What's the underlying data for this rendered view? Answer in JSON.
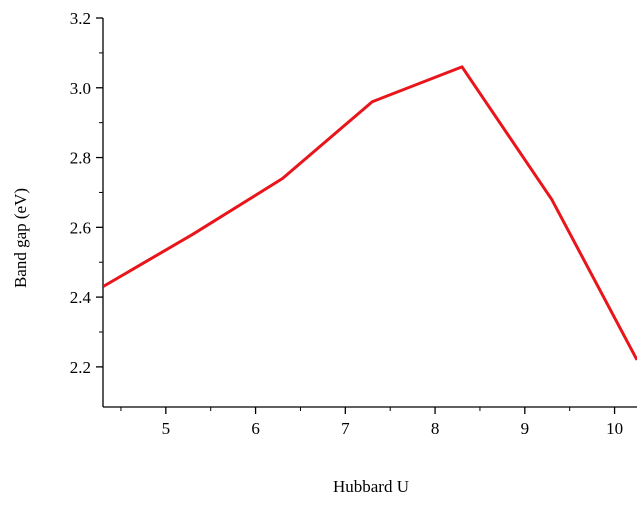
{
  "chart_data": {
    "type": "line",
    "title": "",
    "xlabel": "Hubbard U",
    "ylabel": "Band gap (eV)",
    "xlim": [
      4.3,
      10.25
    ],
    "ylim": [
      2.085,
      3.2
    ],
    "xticks": [
      5,
      6,
      7,
      8,
      9,
      10
    ],
    "yticks": [
      2.2,
      2.4,
      2.6,
      2.8,
      3.0,
      3.2
    ],
    "xtick_labels": [
      "5",
      "6",
      "7",
      "8",
      "9",
      "10"
    ],
    "ytick_labels": [
      "2.2",
      "2.4",
      "2.6",
      "2.8",
      "3.0",
      "3.2"
    ],
    "grid": false,
    "legend": "none",
    "series": [
      {
        "color": "#e8161b",
        "x": [
          4.3,
          5.3,
          6.3,
          7.3,
          8.3,
          9.3,
          10.25
        ],
        "y": [
          2.43,
          2.58,
          2.74,
          2.96,
          3.06,
          2.68,
          2.22
        ]
      }
    ]
  }
}
